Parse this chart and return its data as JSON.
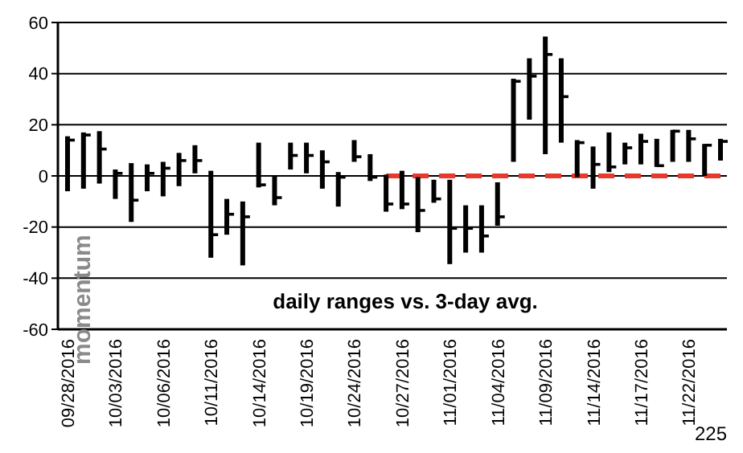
{
  "chart_data": {
    "type": "bar",
    "title": "daily ranges vs. 3-day avg.",
    "ylabel": "momentum",
    "annotations": [
      "225"
    ],
    "categories": [
      "09/28/2016",
      null,
      null,
      "10/03/2016",
      null,
      null,
      "10/06/2016",
      null,
      null,
      "10/11/2016",
      null,
      null,
      "10/14/2016",
      null,
      null,
      "10/19/2016",
      null,
      null,
      "10/24/2016",
      null,
      null,
      "10/27/2016",
      null,
      null,
      "11/01/2016",
      null,
      null,
      "11/04/2016",
      null,
      null,
      "11/09/2016",
      null,
      null,
      "11/14/2016",
      null,
      null,
      "11/17/2016",
      null,
      null,
      "11/22/2016",
      null,
      null
    ],
    "series": [
      {
        "color": "#000000",
        "base": [
          -6,
          -5,
          -3,
          -9,
          -18,
          -6,
          -8,
          -4,
          1,
          -32,
          -23,
          -35,
          -4.5,
          -11.5,
          2.5,
          1,
          -5,
          -12,
          5.5,
          -2,
          -14,
          -13,
          -22,
          -10.5,
          -34.5,
          -30,
          -30,
          -19.5,
          5.5,
          22,
          8.5,
          13,
          -0.5,
          -5,
          1.5,
          4.5,
          4.5,
          3.5,
          5.5,
          5.5,
          0,
          6
        ],
        "values": [
          21.5,
          22,
          20.5,
          11.5,
          23,
          10.5,
          13.5,
          13,
          11,
          34,
          14,
          25,
          17.5,
          11.5,
          10.5,
          12,
          15,
          13.5,
          8.5,
          10.5,
          14.5,
          15,
          21.5,
          9,
          33,
          18.5,
          18.5,
          17,
          32.5,
          24,
          46,
          33,
          14.5,
          16.5,
          15.5,
          8.5,
          12,
          11,
          12.5,
          12.5,
          12.5,
          8.5
        ]
      },
      {
        "type": "scatter",
        "color": "#000000",
        "values": [
          14,
          16,
          10.5,
          1,
          -9.5,
          1,
          3,
          6,
          6,
          -23,
          -15,
          -16,
          -3.5,
          -8.5,
          8,
          8,
          5.5,
          -0.5,
          7.5,
          -0.5,
          -11,
          -11,
          -13.5,
          -9,
          -20.5,
          -20.5,
          -23.5,
          -16,
          37,
          39,
          47.5,
          31,
          13,
          4.5,
          3.5,
          11,
          13.5,
          4,
          17.5,
          14.5,
          12,
          13.5
        ]
      },
      {
        "type": "line",
        "color": "#e8392c",
        "line_style": "dashed",
        "values": [
          null,
          null,
          null,
          null,
          null,
          null,
          null,
          null,
          null,
          null,
          null,
          null,
          null,
          null,
          null,
          null,
          null,
          null,
          null,
          null,
          0,
          0,
          0,
          0,
          0,
          0,
          0,
          0,
          0,
          0,
          0,
          0,
          0,
          0,
          0,
          0,
          0,
          0,
          0,
          0,
          0,
          0
        ]
      }
    ],
    "ylim": [
      -60,
      60
    ],
    "yticks": [
      -60,
      -40,
      -20,
      0,
      20,
      40,
      60
    ],
    "grid": "y"
  }
}
